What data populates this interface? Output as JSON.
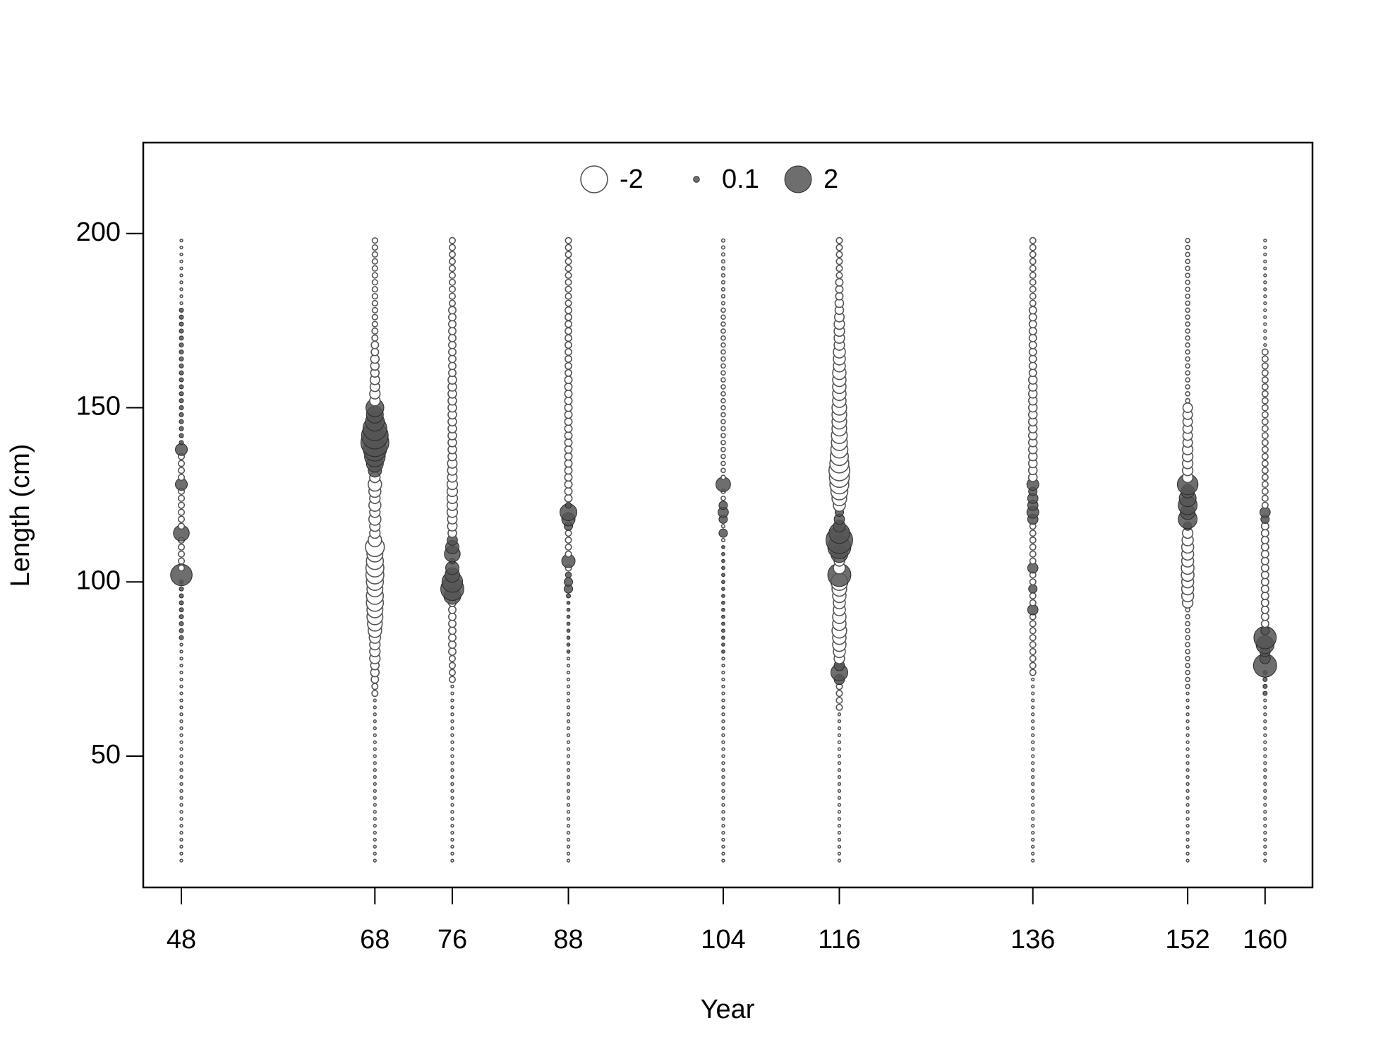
{
  "chart_data": {
    "type": "bubble",
    "xlabel": "Year",
    "ylabel": "Length (cm)",
    "xlim": [
      44.06,
      164.9
    ],
    "ylim": [
      12.3,
      226.1
    ],
    "xticks": [
      48,
      68,
      76,
      88,
      104,
      116,
      136,
      152,
      160
    ],
    "yticks": [
      50,
      100,
      150,
      200
    ],
    "positive_color": "#555555",
    "negative_color": "#ffffff",
    "legend": {
      "position": "top",
      "values": [
        -2,
        0.1,
        2
      ]
    },
    "x": [
      48,
      68,
      76,
      88,
      104,
      116,
      136,
      152,
      160
    ],
    "y": [
      20,
      22,
      24,
      26,
      28,
      30,
      32,
      34,
      36,
      38,
      40,
      42,
      44,
      46,
      48,
      50,
      52,
      54,
      56,
      58,
      60,
      62,
      64,
      66,
      68,
      70,
      72,
      74,
      76,
      78,
      80,
      82,
      84,
      86,
      88,
      90,
      92,
      94,
      96,
      98,
      100,
      102,
      104,
      106,
      108,
      110,
      112,
      114,
      116,
      118,
      120,
      122,
      124,
      126,
      128,
      130,
      132,
      134,
      136,
      138,
      140,
      142,
      144,
      146,
      148,
      150,
      152,
      154,
      156,
      158,
      160,
      162,
      164,
      166,
      168,
      170,
      172,
      174,
      176,
      178,
      180,
      182,
      184,
      186,
      188,
      190,
      192,
      194,
      196,
      198
    ],
    "values": [
      [
        -0.02,
        -0.02,
        -0.02,
        -0.02,
        -0.02,
        -0.02,
        -0.02,
        -0.02,
        -0.02,
        -0.02,
        -0.02,
        -0.02,
        -0.02,
        -0.02,
        -0.02,
        -0.02,
        -0.02,
        -0.02,
        -0.02,
        -0.02,
        -0.02,
        -0.02,
        -0.02,
        -0.02,
        -0.02,
        -0.02,
        -0.02,
        -0.02,
        -0.02,
        -0.02,
        -0.02,
        -0.02,
        0.05,
        0.05,
        0.05,
        0.05,
        0.05,
        0.05,
        0.05,
        0.05,
        0.05,
        1.3,
        -0.1,
        -0.1,
        -0.1,
        -0.1,
        -0.1,
        0.7,
        -0.1,
        -0.1,
        -0.1,
        -0.1,
        -0.1,
        -0.1,
        0.4,
        -0.1,
        -0.1,
        -0.1,
        -0.1,
        0.4,
        0.05,
        0.05,
        0.05,
        0.05,
        0.05,
        0.05,
        0.05,
        0.05,
        0.05,
        0.05,
        0.05,
        0.05,
        0.05,
        0.05,
        0.05,
        0.05,
        0.05,
        0.05,
        0.05,
        0.05,
        -0.02,
        -0.02,
        -0.02,
        -0.02,
        -0.02,
        -0.02,
        -0.02,
        -0.02,
        -0.02,
        -0.02
      ],
      [
        -0.02,
        -0.02,
        -0.02,
        -0.02,
        -0.02,
        -0.02,
        -0.02,
        -0.02,
        -0.02,
        -0.02,
        -0.02,
        -0.02,
        -0.02,
        -0.02,
        -0.02,
        -0.02,
        -0.02,
        -0.02,
        -0.02,
        -0.02,
        -0.02,
        -0.02,
        -0.02,
        -0.02,
        -0.1,
        -0.1,
        -0.15,
        -0.2,
        -0.2,
        -0.3,
        -0.3,
        -0.3,
        -0.35,
        -0.5,
        -0.6,
        -0.7,
        -0.7,
        -0.8,
        -0.8,
        -0.7,
        -0.8,
        -0.9,
        -0.9,
        -0.8,
        -0.7,
        -1.0,
        -0.5,
        -0.3,
        -0.3,
        -0.4,
        -0.3,
        -0.4,
        -0.3,
        -0.4,
        -0.5,
        -0.3,
        0.5,
        0.8,
        1.2,
        1.5,
        2.2,
        2.0,
        1.6,
        1.0,
        0.8,
        0.9,
        -0.3,
        -0.3,
        -0.25,
        -0.25,
        -0.2,
        -0.2,
        -0.2,
        -0.15,
        -0.15,
        -0.1,
        -0.1,
        -0.08,
        -0.08,
        -0.08,
        -0.08,
        -0.08,
        -0.08,
        -0.08,
        -0.08,
        -0.08,
        -0.08,
        -0.08,
        -0.08,
        -0.08
      ],
      [
        -0.02,
        -0.02,
        -0.02,
        -0.02,
        -0.02,
        -0.02,
        -0.02,
        -0.02,
        -0.02,
        -0.02,
        -0.02,
        -0.02,
        -0.02,
        -0.02,
        -0.02,
        -0.02,
        -0.02,
        -0.02,
        -0.02,
        -0.02,
        -0.02,
        -0.02,
        -0.02,
        -0.02,
        -0.02,
        -0.02,
        -0.1,
        -0.1,
        -0.1,
        -0.1,
        -0.15,
        -0.15,
        -0.15,
        -0.15,
        -0.15,
        -0.15,
        -0.15,
        -0.15,
        0.8,
        1.5,
        1.2,
        0.6,
        0.5,
        0.1,
        0.7,
        0.5,
        0.3,
        -0.2,
        -0.25,
        -0.25,
        -0.3,
        -0.3,
        -0.3,
        -0.3,
        -0.3,
        -0.25,
        -0.25,
        -0.25,
        -0.2,
        -0.2,
        -0.2,
        -0.2,
        -0.2,
        -0.2,
        -0.2,
        -0.2,
        -0.2,
        -0.2,
        -0.2,
        -0.2,
        -0.15,
        -0.15,
        -0.15,
        -0.15,
        -0.15,
        -0.15,
        -0.15,
        -0.15,
        -0.15,
        -0.15,
        -0.1,
        -0.1,
        -0.1,
        -0.1,
        -0.1,
        -0.1,
        -0.1,
        -0.1,
        -0.1,
        -0.1
      ],
      [
        -0.02,
        -0.02,
        -0.02,
        -0.02,
        -0.02,
        -0.02,
        -0.02,
        -0.02,
        -0.02,
        -0.02,
        -0.02,
        -0.02,
        -0.02,
        -0.02,
        -0.02,
        -0.02,
        -0.02,
        -0.02,
        -0.02,
        -0.02,
        -0.02,
        -0.02,
        -0.02,
        -0.02,
        -0.02,
        -0.02,
        -0.02,
        -0.02,
        -0.02,
        -0.02,
        0.03,
        0.03,
        0.03,
        0.03,
        0.03,
        0.03,
        0.03,
        0.03,
        0.05,
        0.2,
        0.2,
        0.1,
        -0.1,
        0.5,
        -0.1,
        -0.1,
        -0.1,
        -0.1,
        0.2,
        0.5,
        0.8,
        0.1,
        -0.15,
        -0.15,
        -0.15,
        -0.15,
        -0.15,
        -0.15,
        -0.15,
        -0.15,
        -0.15,
        -0.15,
        -0.15,
        -0.15,
        -0.15,
        -0.15,
        -0.15,
        -0.15,
        -0.15,
        -0.15,
        -0.12,
        -0.12,
        -0.12,
        -0.12,
        -0.12,
        -0.12,
        -0.12,
        -0.12,
        -0.12,
        -0.12,
        -0.1,
        -0.1,
        -0.1,
        -0.1,
        -0.1,
        -0.1,
        -0.1,
        -0.1,
        -0.1,
        -0.1
      ],
      [
        -0.02,
        -0.02,
        -0.02,
        -0.02,
        -0.02,
        -0.02,
        -0.02,
        -0.02,
        -0.02,
        -0.02,
        -0.02,
        -0.02,
        -0.02,
        -0.02,
        -0.02,
        -0.02,
        -0.02,
        -0.02,
        -0.02,
        -0.02,
        -0.02,
        -0.02,
        -0.02,
        -0.02,
        -0.02,
        -0.02,
        -0.02,
        -0.02,
        -0.02,
        -0.02,
        0.03,
        0.03,
        0.03,
        0.03,
        0.03,
        0.03,
        0.03,
        0.03,
        0.03,
        0.03,
        0.03,
        0.03,
        0.03,
        0.03,
        0.03,
        0.03,
        -0.03,
        0.2,
        -0.03,
        0.2,
        0.3,
        0.2,
        -0.05,
        -0.05,
        0.6,
        -0.05,
        -0.05,
        -0.05,
        -0.05,
        -0.05,
        -0.05,
        -0.05,
        -0.05,
        -0.05,
        -0.05,
        -0.05,
        -0.05,
        -0.05,
        -0.05,
        -0.05,
        -0.05,
        -0.05,
        -0.05,
        -0.05,
        -0.05,
        -0.05,
        -0.05,
        -0.05,
        -0.05,
        -0.05,
        -0.03,
        -0.03,
        -0.03,
        -0.03,
        -0.03,
        -0.03,
        -0.03,
        -0.03,
        -0.03,
        -0.03
      ],
      [
        -0.02,
        -0.02,
        -0.02,
        -0.02,
        -0.02,
        -0.02,
        -0.02,
        -0.02,
        -0.02,
        -0.02,
        -0.02,
        -0.02,
        -0.02,
        -0.02,
        -0.02,
        -0.02,
        -0.02,
        -0.02,
        -0.02,
        -0.02,
        -0.02,
        -0.02,
        -0.1,
        -0.1,
        -0.1,
        -0.1,
        0.3,
        0.8,
        0.3,
        -0.3,
        -0.4,
        -0.5,
        -0.5,
        -0.6,
        -0.5,
        -0.5,
        -0.4,
        -0.4,
        -0.5,
        -0.6,
        -0.8,
        1.5,
        -0.4,
        -0.3,
        0.8,
        1.5,
        2.0,
        1.2,
        0.4,
        0.3,
        0.2,
        -0.4,
        -0.6,
        -0.8,
        -1.0,
        -1.1,
        -1.2,
        -1.0,
        -0.9,
        -0.8,
        -0.7,
        -0.7,
        -0.6,
        -0.6,
        -0.6,
        -0.6,
        -0.5,
        -0.5,
        -0.5,
        -0.5,
        -0.5,
        -0.4,
        -0.4,
        -0.4,
        -0.3,
        -0.3,
        -0.3,
        -0.3,
        -0.25,
        -0.2,
        -0.2,
        -0.15,
        -0.15,
        -0.15,
        -0.1,
        -0.1,
        -0.1,
        -0.1,
        -0.1,
        -0.1
      ],
      [
        -0.02,
        -0.02,
        -0.02,
        -0.02,
        -0.02,
        -0.02,
        -0.02,
        -0.02,
        -0.02,
        -0.02,
        -0.02,
        -0.02,
        -0.02,
        -0.02,
        -0.02,
        -0.02,
        -0.02,
        -0.02,
        -0.02,
        -0.02,
        -0.02,
        -0.02,
        -0.02,
        -0.02,
        -0.02,
        -0.02,
        -0.02,
        -0.1,
        -0.1,
        -0.1,
        -0.1,
        -0.1,
        -0.1,
        -0.1,
        -0.1,
        -0.1,
        0.3,
        -0.1,
        -0.1,
        0.2,
        -0.1,
        -0.1,
        0.3,
        -0.1,
        -0.1,
        -0.1,
        -0.1,
        -0.1,
        -0.1,
        0.3,
        0.4,
        0.3,
        0.3,
        0.2,
        0.4,
        -0.2,
        -0.2,
        -0.2,
        -0.2,
        -0.2,
        -0.2,
        -0.2,
        -0.2,
        -0.2,
        -0.2,
        -0.2,
        -0.2,
        -0.2,
        -0.2,
        -0.2,
        -0.15,
        -0.15,
        -0.15,
        -0.15,
        -0.15,
        -0.15,
        -0.15,
        -0.15,
        -0.15,
        -0.15,
        -0.1,
        -0.1,
        -0.1,
        -0.1,
        -0.1,
        -0.1,
        -0.1,
        -0.1,
        -0.1,
        -0.1
      ],
      [
        -0.02,
        -0.02,
        -0.02,
        -0.02,
        -0.02,
        -0.02,
        -0.02,
        -0.02,
        -0.02,
        -0.02,
        -0.02,
        -0.02,
        -0.02,
        -0.02,
        -0.02,
        -0.02,
        -0.02,
        -0.02,
        -0.02,
        -0.02,
        -0.02,
        -0.02,
        -0.02,
        -0.02,
        -0.02,
        -0.05,
        -0.05,
        -0.05,
        -0.05,
        -0.05,
        -0.05,
        -0.05,
        -0.05,
        -0.05,
        -0.05,
        -0.05,
        -0.05,
        -0.3,
        -0.4,
        -0.4,
        -0.4,
        -0.45,
        -0.45,
        -0.4,
        -0.4,
        -0.4,
        -0.35,
        -0.3,
        0.2,
        1.0,
        0.6,
        1.0,
        0.8,
        0.5,
        1.2,
        -0.3,
        -0.3,
        -0.3,
        -0.3,
        -0.3,
        -0.25,
        -0.25,
        -0.25,
        -0.25,
        -0.25,
        -0.25,
        -0.05,
        -0.05,
        -0.05,
        -0.05,
        -0.05,
        -0.05,
        -0.05,
        -0.05,
        -0.05,
        -0.05,
        -0.05,
        -0.05,
        -0.05,
        -0.05,
        -0.05,
        -0.05,
        -0.05,
        -0.05,
        -0.05,
        -0.05,
        -0.05,
        -0.05,
        -0.05,
        -0.05
      ],
      [
        -0.02,
        -0.02,
        -0.02,
        -0.02,
        -0.02,
        -0.02,
        -0.02,
        -0.02,
        -0.02,
        -0.02,
        -0.02,
        -0.02,
        -0.02,
        -0.02,
        -0.02,
        -0.02,
        -0.02,
        -0.02,
        -0.02,
        -0.02,
        -0.02,
        -0.02,
        -0.02,
        -0.02,
        0.05,
        0.05,
        0.05,
        0.05,
        1.5,
        0.3,
        0.3,
        0.9,
        1.4,
        0.2,
        -0.15,
        -0.15,
        -0.15,
        -0.15,
        -0.15,
        -0.15,
        -0.15,
        -0.15,
        -0.15,
        -0.15,
        -0.15,
        -0.15,
        -0.15,
        -0.15,
        -0.15,
        0.2,
        0.3,
        -0.1,
        -0.1,
        -0.1,
        -0.1,
        -0.1,
        -0.1,
        -0.1,
        -0.1,
        -0.1,
        -0.1,
        -0.1,
        -0.1,
        -0.1,
        -0.1,
        -0.1,
        -0.1,
        -0.1,
        -0.1,
        -0.1,
        -0.1,
        -0.1,
        -0.1,
        -0.1,
        -0.02,
        -0.02,
        -0.02,
        -0.02,
        -0.02,
        -0.02,
        -0.02,
        -0.02,
        -0.02,
        -0.02,
        -0.02,
        -0.02,
        -0.02,
        -0.02,
        -0.02,
        -0.02
      ]
    ]
  }
}
